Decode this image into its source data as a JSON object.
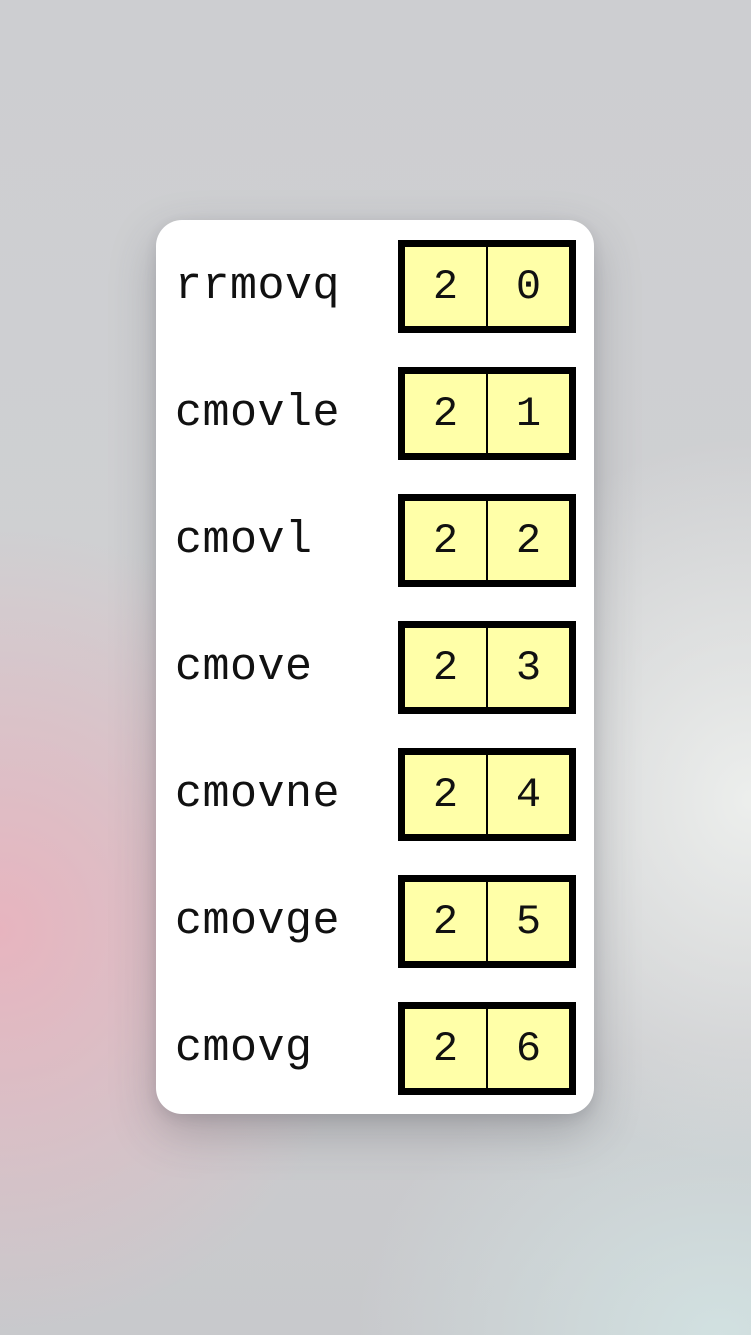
{
  "instructions": [
    {
      "mnemonic": "rrmovq",
      "icode": "2",
      "ifun": "0"
    },
    {
      "mnemonic": "cmovle",
      "icode": "2",
      "ifun": "1"
    },
    {
      "mnemonic": "cmovl",
      "icode": "2",
      "ifun": "2"
    },
    {
      "mnemonic": "cmove",
      "icode": "2",
      "ifun": "3"
    },
    {
      "mnemonic": "cmovne",
      "icode": "2",
      "ifun": "4"
    },
    {
      "mnemonic": "cmovge",
      "icode": "2",
      "ifun": "5"
    },
    {
      "mnemonic": "cmovg",
      "icode": "2",
      "ifun": "6"
    }
  ],
  "colors": {
    "byte_fill": "#ffffa8",
    "byte_border": "#000000",
    "card": "#ffffff"
  }
}
